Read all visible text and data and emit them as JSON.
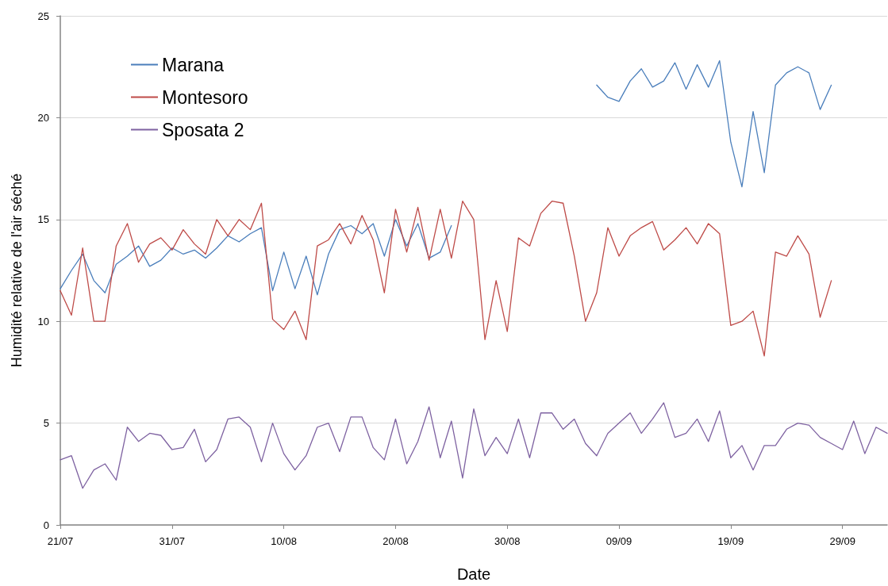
{
  "chart_data": {
    "type": "line",
    "xlabel": "Date",
    "ylabel": "Humidité relative de l'air séché",
    "x": [
      "--07-21",
      "--07-22",
      "--07-23",
      "--07-24",
      "--07-25",
      "--07-26",
      "--07-27",
      "--07-28",
      "--07-29",
      "--07-30",
      "--07-31",
      "--08-01",
      "--08-02",
      "--08-03",
      "--08-04",
      "--08-05",
      "--08-06",
      "--08-07",
      "--08-08",
      "--08-09",
      "--08-10",
      "--08-11",
      "--08-12",
      "--08-13",
      "--08-14",
      "--08-15",
      "--08-16",
      "--08-17",
      "--08-18",
      "--08-19",
      "--08-20",
      "--08-21",
      "--08-22",
      "--08-23",
      "--08-24",
      "--08-25",
      "--08-26",
      "--08-27",
      "--08-28",
      "--08-29",
      "--08-30",
      "--08-31",
      "--09-01",
      "--09-02",
      "--09-03",
      "--09-04",
      "--09-05",
      "--09-06",
      "--09-07",
      "--09-08",
      "--09-09",
      "--09-10",
      "--09-11",
      "--09-12",
      "--09-13",
      "--09-14",
      "--09-15",
      "--09-16",
      "--09-17",
      "--09-18",
      "--09-19",
      "--09-20",
      "--09-21",
      "--09-22",
      "--09-23",
      "--09-24",
      "--09-25",
      "--09-26",
      "--09-27",
      "--09-28",
      "--09-29",
      "--09-30",
      "--10-01",
      "--10-02",
      "--10-03"
    ],
    "series": [
      {
        "name": "Marana",
        "color": "#4a7ebb",
        "values": [
          11.6,
          12.5,
          13.3,
          12.0,
          11.4,
          12.8,
          13.2,
          13.7,
          12.7,
          13.0,
          13.6,
          13.3,
          13.5,
          13.1,
          13.6,
          14.2,
          13.9,
          14.3,
          14.6,
          11.5,
          13.4,
          11.6,
          13.2,
          11.3,
          13.3,
          14.5,
          14.7,
          14.3,
          14.8,
          13.2,
          15.0,
          13.7,
          14.8,
          13.1,
          13.4,
          14.7,
          null,
          null,
          null,
          null,
          null,
          null,
          null,
          null,
          null,
          null,
          null,
          null,
          21.6,
          21.0,
          20.8,
          21.8,
          22.4,
          21.5,
          21.8,
          22.7,
          21.4,
          22.6,
          21.5,
          22.8,
          18.8,
          16.6,
          20.3,
          17.3,
          21.6,
          22.2,
          22.5,
          22.2,
          20.4,
          21.6,
          null,
          null,
          null,
          null,
          null
        ]
      },
      {
        "name": "Montesoro",
        "color": "#be4b48",
        "values": [
          11.5,
          10.3,
          13.6,
          10.0,
          10.0,
          13.7,
          14.8,
          12.9,
          13.8,
          14.1,
          13.5,
          14.5,
          13.8,
          13.3,
          15.0,
          14.2,
          15.0,
          14.5,
          15.8,
          10.1,
          9.6,
          10.5,
          9.1,
          13.7,
          14.0,
          14.8,
          13.8,
          15.2,
          14.0,
          11.4,
          15.5,
          13.4,
          15.6,
          13.0,
          15.5,
          13.1,
          15.9,
          15.0,
          9.1,
          12.0,
          9.5,
          14.1,
          13.7,
          15.3,
          15.9,
          15.8,
          13.2,
          10.0,
          11.4,
          14.6,
          13.2,
          14.2,
          14.6,
          14.9,
          13.5,
          14.0,
          14.6,
          13.8,
          14.8,
          14.3,
          9.8,
          10.0,
          10.5,
          8.3,
          13.4,
          13.2,
          14.2,
          13.3,
          10.2,
          12.0,
          null,
          null,
          null,
          null,
          null
        ]
      },
      {
        "name": "Sposata 2",
        "color": "#7e62a1",
        "values": [
          3.2,
          3.4,
          1.8,
          2.7,
          3.0,
          2.2,
          4.8,
          4.1,
          4.5,
          4.4,
          3.7,
          3.8,
          4.7,
          3.1,
          3.7,
          5.2,
          5.3,
          4.8,
          3.1,
          5.0,
          3.5,
          2.7,
          3.4,
          4.8,
          5.0,
          3.6,
          5.3,
          5.3,
          3.8,
          3.2,
          5.2,
          3.0,
          4.1,
          5.8,
          3.3,
          5.1,
          2.3,
          5.7,
          3.4,
          4.3,
          3.5,
          5.2,
          3.3,
          5.5,
          5.5,
          4.7,
          5.2,
          4.0,
          3.4,
          4.5,
          5.0,
          5.5,
          4.5,
          5.2,
          6.0,
          4.3,
          4.5,
          5.2,
          4.1,
          5.6,
          3.3,
          3.9,
          2.7,
          3.9,
          3.9,
          4.7,
          5.0,
          4.9,
          4.3,
          4.0,
          3.7,
          5.1,
          3.5,
          4.8,
          4.5
        ]
      }
    ],
    "xlim": [
      "--07-21",
      "--10-03"
    ],
    "xticks": [
      {
        "value": "--07-21",
        "label": "21/07"
      },
      {
        "value": "--07-31",
        "label": "31/07"
      },
      {
        "value": "--08-10",
        "label": "10/08"
      },
      {
        "value": "--08-20",
        "label": "20/08"
      },
      {
        "value": "--08-30",
        "label": "30/08"
      },
      {
        "value": "--09-09",
        "label": "09/09"
      },
      {
        "value": "--09-19",
        "label": "19/09"
      },
      {
        "value": "--09-29",
        "label": "29/09"
      }
    ],
    "ylim": [
      0,
      25
    ],
    "yticks": [
      0,
      5,
      10,
      15,
      20,
      25
    ],
    "grid": "y",
    "legend": "top left",
    "marker": "none",
    "line_style": "solid"
  }
}
